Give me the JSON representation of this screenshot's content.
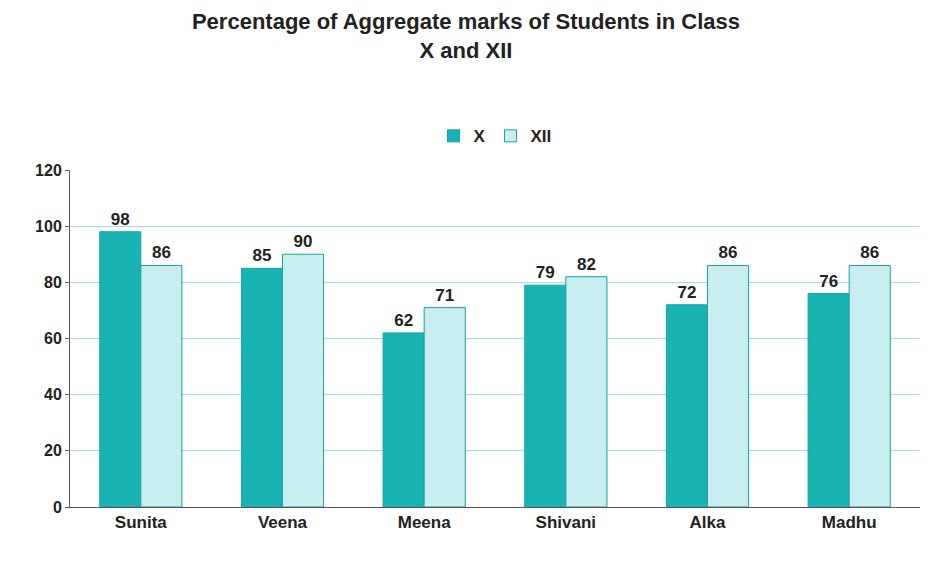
{
  "chart_data": {
    "type": "bar",
    "title": "Percentage of Aggregate marks of Students in Class\nX and XII",
    "categories": [
      "Sunita",
      "Veena",
      "Meena",
      "Shivani",
      "Alka",
      "Madhu"
    ],
    "series": [
      {
        "name": "X",
        "color": "#1ab3b3",
        "values": [
          98,
          85,
          62,
          79,
          72,
          76
        ]
      },
      {
        "name": "XII",
        "color": "#c9eef0",
        "values": [
          86,
          90,
          71,
          82,
          86,
          86
        ]
      }
    ],
    "ylim": [
      0,
      120
    ],
    "yticks": [
      0,
      20,
      40,
      60,
      80,
      100,
      120
    ],
    "grid": true,
    "legend": "top",
    "data_labels": true
  }
}
